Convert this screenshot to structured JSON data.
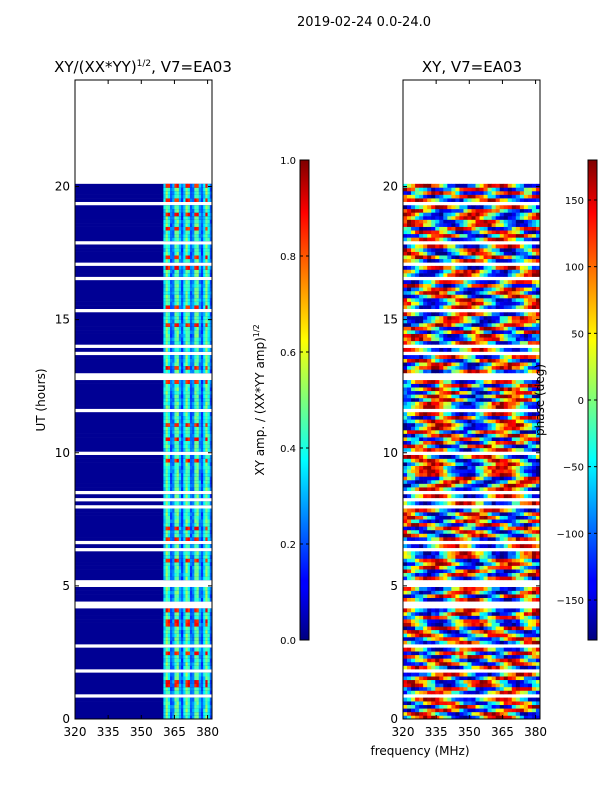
{
  "suptitle": "2019-02-24 0.0-24.0",
  "chart_data": [
    {
      "type": "heatmap",
      "title_base": "XY/(XX*YY)",
      "title_sup": "1/2",
      "title_tail": ", V7=EA03",
      "xlabel": "",
      "ylabel": "UT (hours)",
      "xlim": [
        320,
        382
      ],
      "ylim": [
        0,
        24
      ],
      "xticks": [
        320,
        335,
        350,
        365,
        380
      ],
      "yticks": [
        0,
        5,
        10,
        15,
        20
      ],
      "data_extent_hours": [
        0,
        20.1
      ],
      "bright_band_mhz": [
        360,
        382
      ],
      "colorbar": {
        "label_base": "XY amp. / (XX*YY amp)",
        "label_sup": "1/2",
        "range": [
          0.0,
          1.0
        ],
        "ticks": [
          "0.0",
          "0.2",
          "0.4",
          "0.6",
          "0.8",
          "1.0"
        ],
        "tick_values": [
          0.0,
          0.2,
          0.4,
          0.6,
          0.8,
          1.0
        ]
      },
      "typical_values": {
        "background": 0.02,
        "band": 0.35,
        "band_peaks": 0.9
      }
    },
    {
      "type": "heatmap",
      "title": "XY, V7=EA03",
      "xlabel": "frequency (MHz)",
      "ylabel": "",
      "xlim": [
        320,
        382
      ],
      "ylim": [
        0,
        24
      ],
      "xticks": [
        320,
        335,
        350,
        365,
        380
      ],
      "yticks": [
        0,
        5,
        10,
        15,
        20
      ],
      "data_extent_hours": [
        0,
        20.1
      ],
      "colorbar": {
        "label": "phase (deg)",
        "range": [
          -180,
          180
        ],
        "ticks": [
          "150",
          "100",
          "50",
          "0",
          "−50",
          "−100",
          "−150"
        ],
        "tick_values": [
          150,
          100,
          50,
          0,
          -50,
          -100,
          -150
        ]
      }
    }
  ]
}
